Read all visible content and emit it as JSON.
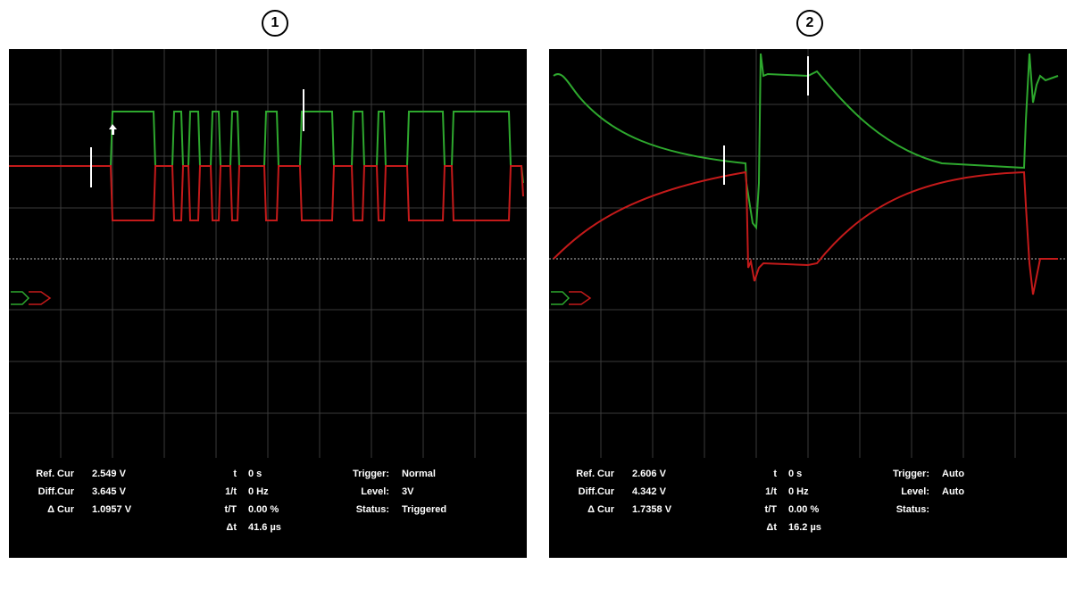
{
  "panels": [
    {
      "label": "1",
      "colors": {
        "ch1": "#2ea82e",
        "ch2": "#c41a1a"
      },
      "readout": {
        "ref_cur_label": "Ref. Cur",
        "ref_cur_value": "2.549 V",
        "diff_cur_label": "Diff.Cur",
        "diff_cur_value": "3.645 V",
        "delta_cur_label": "Δ Cur",
        "delta_cur_value": "1.0957 V",
        "t_label": "t",
        "t_value": "0 s",
        "inv_t_label": "1/t",
        "inv_t_value": "0 Hz",
        "t_over_T_label": "t/T",
        "t_over_T_value": "0.00 %",
        "delta_t_label": "Δt",
        "delta_t_value": "41.6 µs",
        "trigger_label": "Trigger:",
        "trigger_value": "Normal",
        "level_label": "Level:",
        "level_value": "3V",
        "status_label": "Status:",
        "status_value": "Triggered"
      }
    },
    {
      "label": "2",
      "colors": {
        "ch1": "#2ea82e",
        "ch2": "#c41a1a"
      },
      "readout": {
        "ref_cur_label": "Ref. Cur",
        "ref_cur_value": "2.606 V",
        "diff_cur_label": "Diff.Cur",
        "diff_cur_value": "4.342 V",
        "delta_cur_label": "Δ Cur",
        "delta_cur_value": "1.7358 V",
        "t_label": "t",
        "t_value": "0 s",
        "inv_t_label": "1/t",
        "inv_t_value": "0 Hz",
        "t_over_T_label": "t/T",
        "t_over_T_value": "0.00 %",
        "delta_t_label": "Δt",
        "delta_t_value": "16.2 µs",
        "trigger_label": "Trigger:",
        "trigger_value": "Auto",
        "level_label": "Level:",
        "level_value": "Auto",
        "status_label": "Status:",
        "status_value": ""
      }
    }
  ],
  "figure_id": "TF13-2652"
}
